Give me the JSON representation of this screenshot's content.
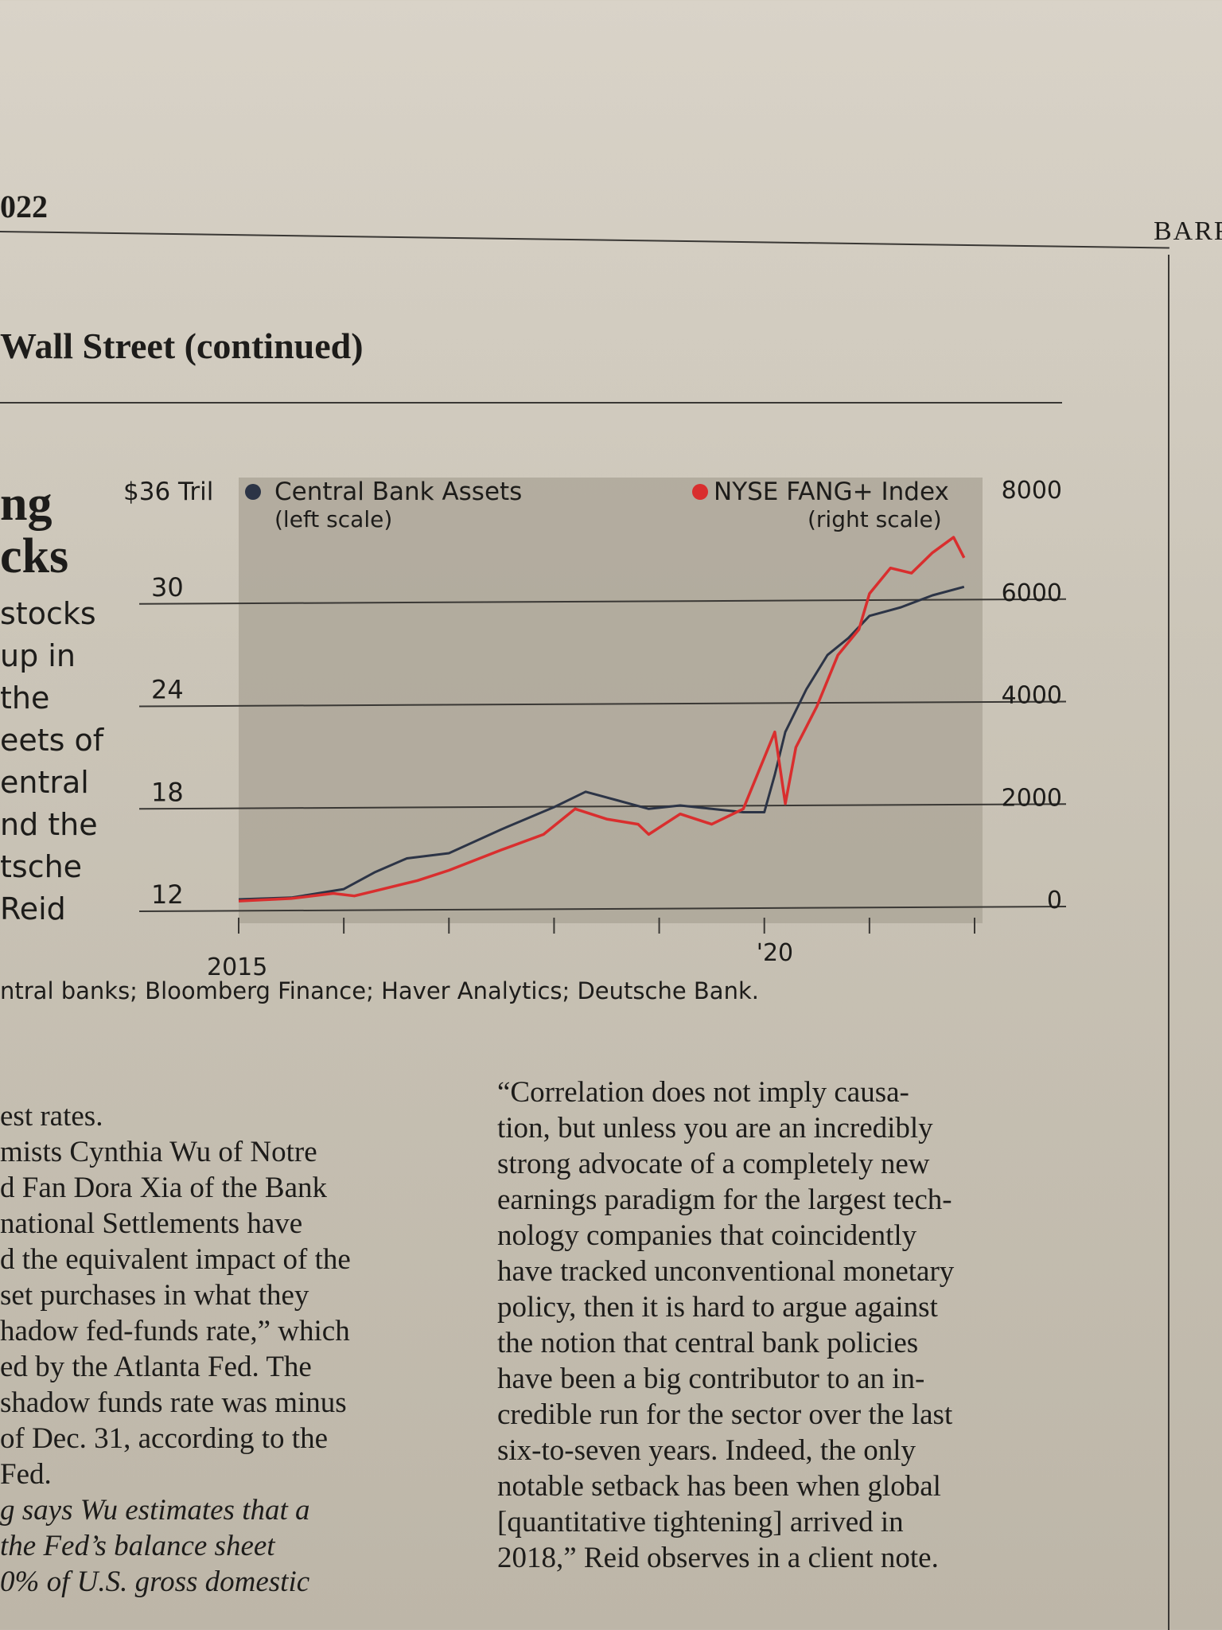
{
  "header": {
    "page_number": "022",
    "publication": "BARR",
    "section_title": "Wall Street (continued)"
  },
  "sidebar": {
    "headline": [
      "ng",
      "cks"
    ],
    "lines": [
      "stocks",
      "up in",
      "the",
      "eets of",
      "entral",
      "nd the",
      "tsche",
      "Reid"
    ]
  },
  "chart_data": {
    "type": "line",
    "left_axis": {
      "top_label": "$36 Tril",
      "ticks": [
        "30",
        "24",
        "18",
        "12"
      ],
      "tick_values": [
        30,
        24,
        18,
        12
      ],
      "range": [
        12,
        36
      ]
    },
    "right_axis": {
      "ticks": [
        "8000",
        "6000",
        "4000",
        "2000",
        "0"
      ],
      "tick_values": [
        8000,
        6000,
        4000,
        2000,
        0
      ],
      "range": [
        0,
        8000
      ]
    },
    "x_axis": {
      "tick_labels": [
        "2015",
        "'20"
      ],
      "range": [
        2015,
        2022
      ]
    },
    "legend": [
      {
        "name": "Central Bank Assets",
        "note": "(left scale)",
        "color": "#2c3446"
      },
      {
        "name": "NYSE FANG+ Index",
        "note": "(right scale)",
        "color": "#d92e2e"
      }
    ],
    "series": [
      {
        "name": "Central Bank Assets",
        "axis": "left",
        "x": [
          2015.0,
          2015.5,
          2016.0,
          2016.3,
          2016.6,
          2017.0,
          2017.5,
          2018.0,
          2018.3,
          2018.6,
          2018.9,
          2019.2,
          2019.5,
          2019.8,
          2020.0,
          2020.1,
          2020.2,
          2020.4,
          2020.6,
          2020.8,
          2021.0,
          2021.3,
          2021.6,
          2021.9
        ],
        "values": [
          12.7,
          12.8,
          13.3,
          14.3,
          15.1,
          15.4,
          16.8,
          18.1,
          19.0,
          18.5,
          18.0,
          18.2,
          18.0,
          17.8,
          17.8,
          20.0,
          22.5,
          25.0,
          27.0,
          28.0,
          29.3,
          29.8,
          30.5,
          31.0
        ]
      },
      {
        "name": "NYSE FANG+ Index",
        "axis": "right",
        "x": [
          2015.0,
          2015.5,
          2015.9,
          2016.1,
          2016.3,
          2016.7,
          2017.0,
          2017.5,
          2017.9,
          2018.2,
          2018.5,
          2018.8,
          2018.9,
          2019.2,
          2019.5,
          2019.8,
          2020.1,
          2020.2,
          2020.3,
          2020.5,
          2020.7,
          2020.9,
          2021.0,
          2021.2,
          2021.4,
          2021.6,
          2021.8,
          2021.9
        ],
        "values": [
          200,
          250,
          350,
          300,
          400,
          600,
          800,
          1200,
          1500,
          2000,
          1800,
          1700,
          1500,
          1900,
          1700,
          2000,
          3500,
          2100,
          3200,
          4000,
          5000,
          5500,
          6200,
          6700,
          6600,
          7000,
          7300,
          6900
        ]
      }
    ]
  },
  "source": "ntral banks; Bloomberg Finance; Haver Analytics; Deutsche Bank.",
  "column1": [
    {
      "text": "est rates.",
      "italic": false
    },
    {
      "text": "mists Cynthia Wu of Notre",
      "italic": false
    },
    {
      "text": "d Fan Dora Xia of the Bank",
      "italic": false
    },
    {
      "text": "national Settlements have",
      "italic": false
    },
    {
      "text": "d the equivalent impact of the",
      "italic": false
    },
    {
      "text": "set purchases in what they",
      "italic": false
    },
    {
      "text": "hadow fed-funds rate,” which",
      "italic": false
    },
    {
      "text": "ed by the Atlanta Fed. The",
      "italic": false
    },
    {
      "text": "shadow funds rate was minus",
      "italic": false
    },
    {
      "text": "of Dec. 31, according to the",
      "italic": false
    },
    {
      "text": "Fed.",
      "italic": false
    },
    {
      "text": "g says Wu estimates that a",
      "italic": true
    },
    {
      "text": "the Fed’s balance sheet",
      "italic": true
    },
    {
      "text": "0% of U.S. gross domestic",
      "italic": true
    }
  ],
  "column2": [
    "“Correlation does not imply causa-",
    "tion, but unless you are an incredibly",
    "strong advocate of a completely new",
    "earnings paradigm for the largest tech-",
    "nology companies that coincidently",
    "have tracked unconventional monetary",
    "policy, then it is hard to argue against",
    "the notion that central bank policies",
    "have been a big contributor to an in-",
    "credible run for the sector over the last",
    "six-to-seven years. Indeed, the only",
    "notable setback has been when global",
    "[quantitative tightening] arrived in",
    "2018,” Reid observes in a client note."
  ]
}
